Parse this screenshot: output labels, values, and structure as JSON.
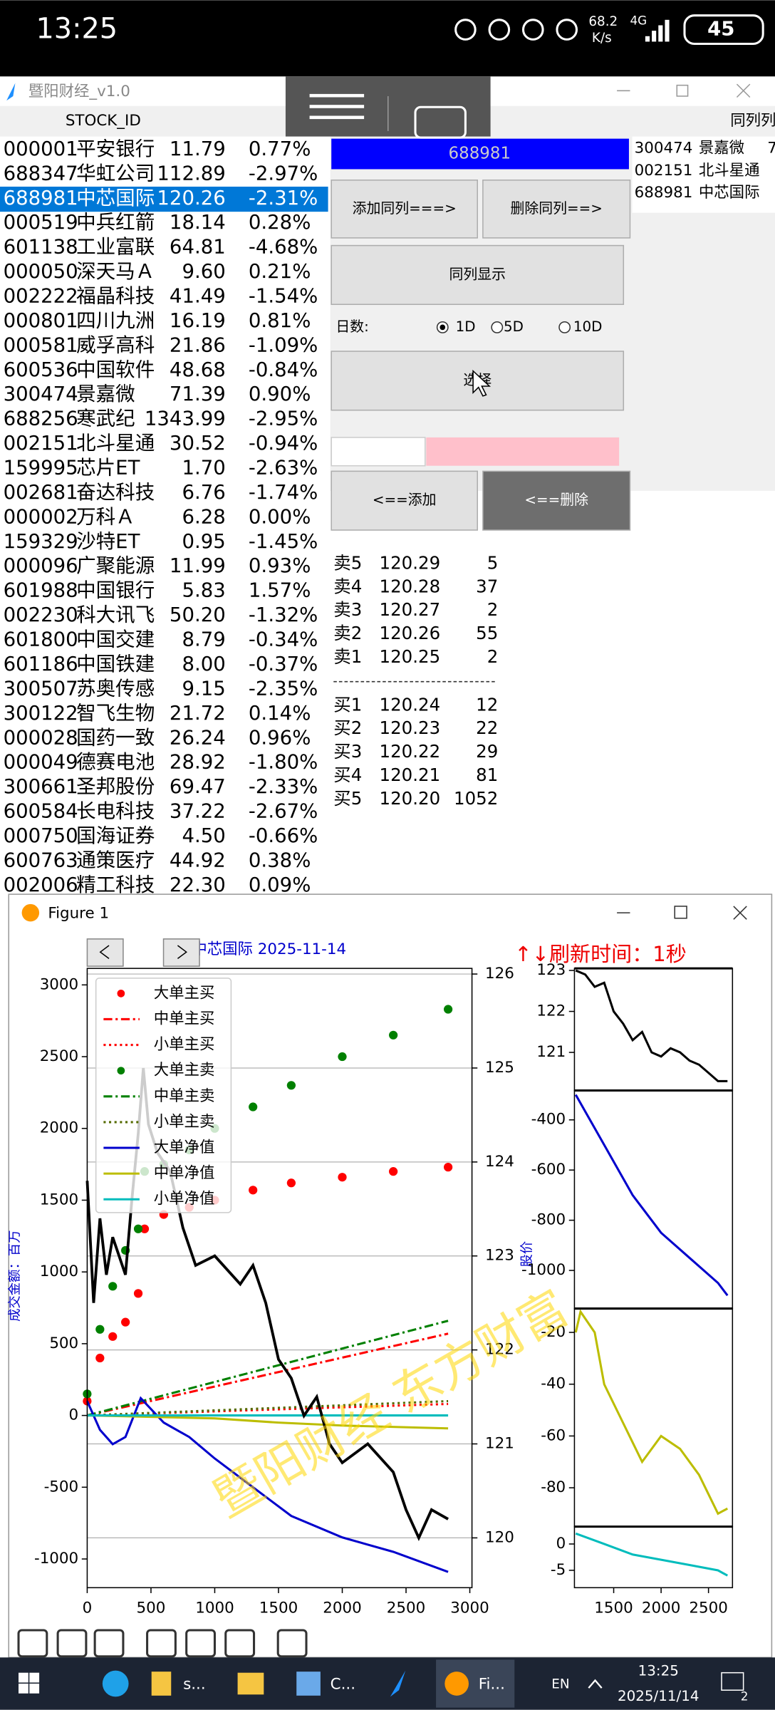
{
  "status_bar": {
    "time": "13:25",
    "speed": "68.2",
    "speed_unit": "K/s",
    "network": "4G",
    "battery": "45"
  },
  "app": {
    "title": "暨阳财经_v1.0",
    "column_header": "STOCK_ID",
    "right_header": "同列列",
    "stocks": [
      [
        "000001",
        "平安银行",
        "11.79",
        "0.77%"
      ],
      [
        "688347",
        "华虹公司",
        "112.89",
        "-2.97%"
      ],
      [
        "688981",
        "中芯国际",
        "120.26",
        "-2.31%"
      ],
      [
        "000519",
        "中兵红箭",
        "18.14",
        "0.28%"
      ],
      [
        "601138",
        "工业富联",
        "64.81",
        "-4.68%"
      ],
      [
        "000050",
        "深天马Ａ",
        "9.60",
        "0.21%"
      ],
      [
        "002222",
        "福晶科技",
        "41.49",
        "-1.54%"
      ],
      [
        "000801",
        "四川九洲",
        "16.19",
        "0.81%"
      ],
      [
        "000581",
        "威孚高科",
        "21.86",
        "-1.09%"
      ],
      [
        "600536",
        "中国软件",
        "48.68",
        "-0.84%"
      ],
      [
        "300474",
        "景嘉微",
        "71.39",
        "0.90%"
      ],
      [
        "688256",
        "寒武纪",
        "1343.99",
        "-2.95%"
      ],
      [
        "002151",
        "北斗星通",
        "30.52",
        "-0.94%"
      ],
      [
        "159995",
        "芯片ET",
        "1.70",
        "-2.63%"
      ],
      [
        "002681",
        "奋达科技",
        "6.76",
        "-1.74%"
      ],
      [
        "000002",
        "万科Ａ",
        "6.28",
        "0.00%"
      ],
      [
        "159329",
        "沙特ET",
        "0.95",
        "-1.45%"
      ],
      [
        "000096",
        "广聚能源",
        "11.99",
        "0.93%"
      ],
      [
        "601988",
        "中国银行",
        "5.83",
        "1.57%"
      ],
      [
        "002230",
        "科大讯飞",
        "50.20",
        "-1.32%"
      ],
      [
        "601800",
        "中国交建",
        "8.79",
        "-0.34%"
      ],
      [
        "601186",
        "中国铁建",
        "8.00",
        "-0.37%"
      ],
      [
        "300507",
        "苏奥传感",
        "9.15",
        "-2.35%"
      ],
      [
        "300122",
        "智飞生物",
        "21.72",
        "0.14%"
      ],
      [
        "000028",
        "国药一致",
        "26.24",
        "0.96%"
      ],
      [
        "000049",
        "德赛电池",
        "28.92",
        "-1.80%"
      ],
      [
        "300661",
        "圣邦股份",
        "69.47",
        "-2.33%"
      ],
      [
        "600584",
        "长电科技",
        "37.22",
        "-2.67%"
      ],
      [
        "000750",
        "国海证券",
        "4.50",
        "-0.66%"
      ],
      [
        "600763",
        "通策医疗",
        "44.92",
        "0.38%"
      ],
      [
        "002006",
        "精工科技",
        "22.30",
        "0.09%"
      ]
    ],
    "panel": {
      "selected_code": "688981",
      "add_same": "添加同列===>",
      "delete_same": "删除同列==>",
      "show_same": "同列显示",
      "days_label": "日数:",
      "days": [
        "1D",
        "5D",
        "10D"
      ],
      "selected_day": 0,
      "select": "选择",
      "add": "<==添加",
      "delete": "<==删除"
    },
    "same_list": [
      [
        "300474",
        "景嘉微",
        "7"
      ],
      [
        "002151",
        "北斗星通"
      ],
      [
        "688981",
        "中芯国际"
      ]
    ],
    "order_book": {
      "asks": [
        [
          "卖5",
          "120.29",
          "5"
        ],
        [
          "卖4",
          "120.28",
          "37"
        ],
        [
          "卖3",
          "120.27",
          "2"
        ],
        [
          "卖2",
          "120.26",
          "55"
        ],
        [
          "卖1",
          "120.25",
          "2"
        ]
      ],
      "bids": [
        [
          "买1",
          "120.24",
          "12"
        ],
        [
          "买2",
          "120.23",
          "22"
        ],
        [
          "买3",
          "120.22",
          "29"
        ],
        [
          "买4",
          "120.21",
          "81"
        ],
        [
          "买5",
          "120.20",
          "1052"
        ]
      ]
    }
  },
  "figure": {
    "window_title": "Figure 1",
    "title": "中芯国际  2025-11-14",
    "refresh": "↑↓刷新时间：1秒",
    "watermark": "暨阳财经 东方财富",
    "main_chart": {
      "type": "line",
      "ylabel": "成交金额：百万",
      "y2label": "股价",
      "xlim": [
        0,
        3017
      ],
      "ylim": [
        -1200,
        3115
      ],
      "y2lim": [
        119.47,
        126.06
      ],
      "xticks": [
        0,
        500,
        1000,
        1500,
        2000,
        2500,
        3000
      ],
      "yticks": [
        -1000,
        -500,
        0,
        500,
        1000,
        1500,
        2000,
        2500,
        3000
      ],
      "y2ticks": [
        120,
        121,
        122,
        123,
        124,
        125,
        126
      ],
      "grid": true,
      "legend": "upper left",
      "series": [
        {
          "name": "大单主买",
          "color": "#ff0000",
          "style": "dots",
          "x": [
            0,
            100,
            200,
            300,
            400,
            450,
            600,
            800,
            1000,
            1300,
            1600,
            2000,
            2400,
            2830
          ],
          "values": [
            100,
            400,
            550,
            650,
            850,
            1300,
            1400,
            1450,
            1500,
            1570,
            1620,
            1660,
            1700,
            1730
          ]
        },
        {
          "name": "中单主买",
          "color": "#ff0000",
          "style": "dashdot",
          "x": [
            0,
            2830
          ],
          "values": [
            0,
            570
          ]
        },
        {
          "name": "小单主买",
          "color": "#ff0000",
          "style": "dotted",
          "x": [
            0,
            2830
          ],
          "values": [
            0,
            80
          ]
        },
        {
          "name": "大单主卖",
          "color": "#008000",
          "style": "dots",
          "x": [
            0,
            100,
            200,
            300,
            400,
            450,
            600,
            800,
            1000,
            1300,
            1600,
            2000,
            2400,
            2830
          ],
          "values": [
            150,
            600,
            900,
            1150,
            1300,
            1700,
            1750,
            1850,
            2000,
            2150,
            2300,
            2500,
            2650,
            2830
          ]
        },
        {
          "name": "中单主卖",
          "color": "#008000",
          "style": "dashdot",
          "x": [
            0,
            2830
          ],
          "values": [
            0,
            660
          ]
        },
        {
          "name": "小单主卖",
          "color": "#556b00",
          "style": "dotted",
          "x": [
            0,
            2830
          ],
          "values": [
            0,
            100
          ]
        },
        {
          "name": "大单净值",
          "color": "#0000cc",
          "style": "solid",
          "x": [
            0,
            100,
            200,
            300,
            420,
            600,
            800,
            1000,
            1300,
            1600,
            2000,
            2400,
            2830
          ],
          "values": [
            100,
            -100,
            -200,
            -150,
            120,
            -50,
            -150,
            -300,
            -500,
            -700,
            -850,
            -950,
            -1090
          ]
        },
        {
          "name": "中单净值",
          "color": "#bcbd00",
          "style": "solid",
          "x": [
            0,
            1000,
            1500,
            2000,
            2830
          ],
          "values": [
            0,
            -20,
            -50,
            -70,
            -90
          ]
        },
        {
          "name": "小单净值",
          "color": "#00bcbc",
          "style": "solid",
          "x": [
            0,
            2830
          ],
          "values": [
            0,
            0
          ]
        }
      ],
      "price_series": {
        "axis": "y2",
        "color": "#000000",
        "x": [
          0,
          50,
          100,
          150,
          200,
          300,
          350,
          400,
          440,
          480,
          550,
          650,
          750,
          850,
          1000,
          1200,
          1300,
          1400,
          1500,
          1600,
          1700,
          1800,
          1900,
          2000,
          2200,
          2400,
          2500,
          2600,
          2700,
          2830
        ],
        "values": [
          123.8,
          122.5,
          123.4,
          122.8,
          123.2,
          122.8,
          123.6,
          124.3,
          125.0,
          124.4,
          124.1,
          123.9,
          123.3,
          122.9,
          123.0,
          122.7,
          122.9,
          122.5,
          121.9,
          121.7,
          121.3,
          121.5,
          121.0,
          120.8,
          121.0,
          120.7,
          120.3,
          120.0,
          120.3,
          120.2
        ]
      }
    },
    "side_charts": [
      {
        "type": "line",
        "color": "#000000",
        "xlim": [
          1086,
          2753
        ],
        "ylim": [
          120.07,
          123.05
        ],
        "yticks": [
          121,
          122,
          123
        ],
        "x": [
          1100,
          1200,
          1300,
          1400,
          1500,
          1600,
          1700,
          1800,
          1900,
          2000,
          2100,
          2200,
          2300,
          2400,
          2500,
          2600,
          2700
        ],
        "values": [
          123.0,
          122.9,
          122.6,
          122.7,
          122.0,
          121.7,
          121.3,
          121.5,
          121.0,
          120.9,
          121.1,
          121.0,
          120.8,
          120.7,
          120.5,
          120.3,
          120.3
        ]
      },
      {
        "type": "line",
        "color": "#0000cc",
        "xlim": [
          1086,
          2753
        ],
        "ylim": [
          -1152,
          -283
        ],
        "yticks": [
          -1000,
          -800,
          -600,
          -400
        ],
        "x": [
          1100,
          1400,
          1700,
          2000,
          2300,
          2600,
          2700
        ],
        "values": [
          -300,
          -500,
          -700,
          -850,
          -950,
          -1050,
          -1100
        ]
      },
      {
        "type": "line",
        "color": "#bcbd00",
        "xlim": [
          1086,
          2753
        ],
        "ylim": [
          -95,
          -10.8
        ],
        "yticks": [
          -80,
          -60,
          -40,
          -20
        ],
        "x": [
          1100,
          1150,
          1300,
          1400,
          1600,
          1800,
          2000,
          2200,
          2400,
          2600,
          2700
        ],
        "values": [
          -20,
          -12,
          -20,
          -40,
          -55,
          -70,
          -60,
          -65,
          -75,
          -90,
          -88
        ]
      },
      {
        "type": "line",
        "color": "#00bcbc",
        "xlim": [
          1086,
          2753
        ],
        "ylim": [
          -8.3,
          3.3
        ],
        "yticks": [
          -5,
          0
        ],
        "xticks": [
          1500,
          2000,
          2500
        ],
        "x": [
          1100,
          1400,
          1700,
          2000,
          2300,
          2600,
          2700
        ],
        "values": [
          2,
          0,
          -2,
          -3,
          -4,
          -5,
          -6
        ]
      }
    ]
  },
  "taskbar": {
    "apps": [
      "s...",
      "C...",
      "Fi..."
    ],
    "language": "EN",
    "time": "13:25",
    "date": "2025/11/14",
    "notifications": "2"
  }
}
